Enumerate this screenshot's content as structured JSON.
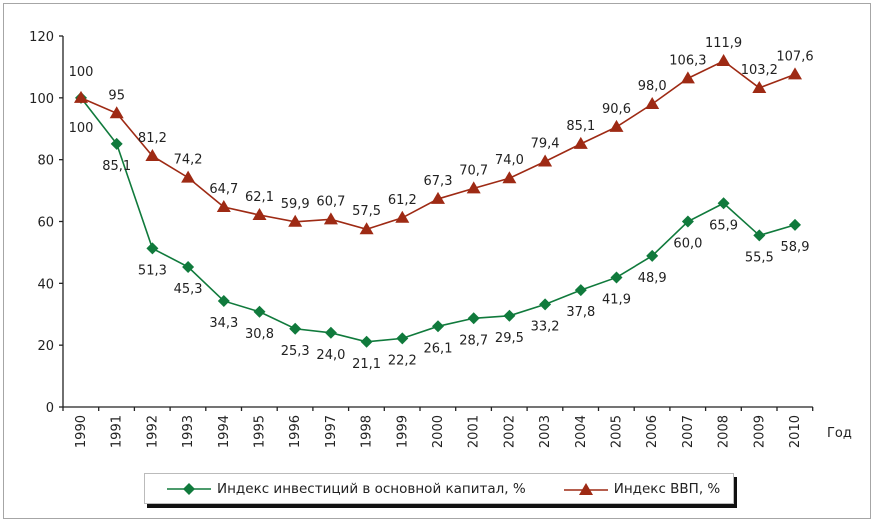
{
  "chart_data": {
    "type": "line",
    "title": "",
    "xlabel": "Год",
    "ylabel": "",
    "ylim": [
      0,
      120
    ],
    "yticks": [
      0,
      20,
      40,
      60,
      80,
      100,
      120
    ],
    "grid": false,
    "legend_position": "bottom",
    "x": [
      "1990",
      "1991",
      "1992",
      "1993",
      "1994",
      "1995",
      "1996",
      "1997",
      "1998",
      "1999",
      "2000",
      "2001",
      "2002",
      "2003",
      "2004",
      "2005",
      "2006",
      "2007",
      "2008",
      "2009",
      "2010"
    ],
    "series": [
      {
        "name": "Индекс инвестиций в основной капитал, %",
        "color": "#107a3c",
        "marker": "diamond",
        "label_position": "below",
        "values": [
          100,
          85.1,
          51.3,
          45.3,
          34.3,
          30.8,
          25.3,
          24.0,
          21.1,
          22.2,
          26.1,
          28.7,
          29.5,
          33.2,
          37.8,
          41.9,
          48.9,
          60.0,
          65.9,
          55.5,
          58.9
        ],
        "labels": [
          "100",
          "85,1",
          "51,3",
          "45,3",
          "34,3",
          "30,8",
          "25,3",
          "24,0",
          "21,1",
          "22,2",
          "26,1",
          "28,7",
          "29,5",
          "33,2",
          "37,8",
          "41,9",
          "48,9",
          "60,0",
          "65,9",
          "55,5",
          "58,9"
        ]
      },
      {
        "name": "Индекс ВВП, %",
        "color": "#9e2a14",
        "marker": "triangle",
        "label_position": "above",
        "values": [
          100,
          95,
          81.2,
          74.2,
          64.7,
          62.1,
          59.9,
          60.7,
          57.5,
          61.2,
          67.3,
          70.7,
          74.0,
          79.4,
          85.1,
          90.6,
          98.0,
          106.3,
          111.9,
          103.2,
          107.6
        ],
        "labels": [
          "100",
          "95",
          "81,2",
          "74,2",
          "64,7",
          "62,1",
          "59,9",
          "60,7",
          "57,5",
          "61,2",
          "67,3",
          "70,7",
          "74,0",
          "79,4",
          "85,1",
          "90,6",
          "98,0",
          "106,3",
          "111,9",
          "103,2",
          "107,6"
        ]
      }
    ]
  }
}
